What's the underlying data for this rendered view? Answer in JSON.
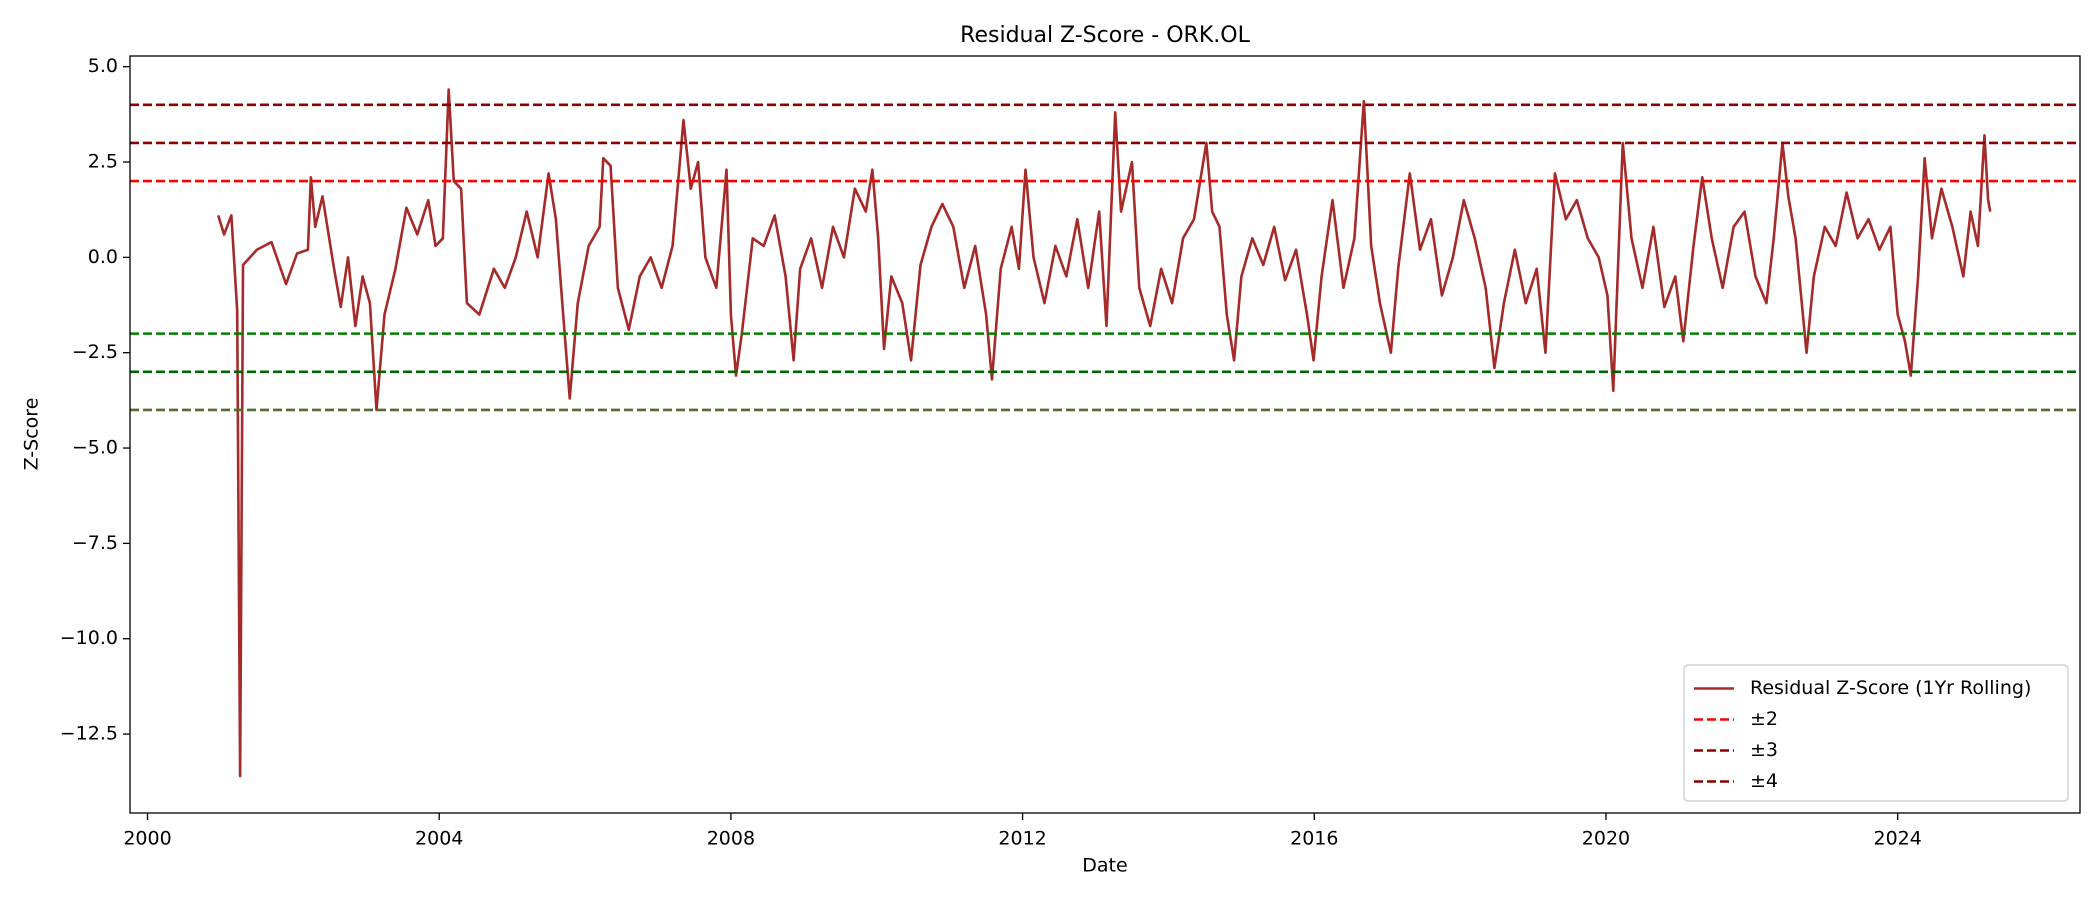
{
  "chart_data": {
    "type": "line",
    "title": "Residual Z-Score - ORK.OL",
    "x_label": "Date",
    "y_label": "Z-Score",
    "xlim": [
      1999.76,
      2026.5
    ],
    "xticks": [
      2000,
      2004,
      2008,
      2012,
      2016,
      2020,
      2024
    ],
    "ylim": [
      -14.57,
      5.28
    ],
    "yticks": [
      {
        "value": 5,
        "label": "5.0"
      },
      {
        "value": 2.5,
        "label": "2.5"
      },
      {
        "value": 0,
        "label": "0.0"
      },
      {
        "value": -2.5,
        "label": "−2.5"
      },
      {
        "value": -5,
        "label": "−5.0"
      },
      {
        "value": -7.5,
        "label": "−7.5"
      },
      {
        "value": -10,
        "label": "−10.0"
      },
      {
        "value": -12.5,
        "label": "−12.5"
      }
    ],
    "legend_position": "lower right",
    "x": [
      2000.97,
      2001.05,
      2001.15,
      2001.23,
      2001.27,
      2001.31,
      2001.5,
      2001.7,
      2001.9,
      2002.05,
      2002.2,
      2002.24,
      2002.3,
      2002.4,
      2002.55,
      2002.65,
      2002.75,
      2002.85,
      2002.95,
      2003.05,
      2003.14,
      2003.25,
      2003.4,
      2003.55,
      2003.7,
      2003.85,
      2003.95,
      2004.05,
      2004.13,
      2004.2,
      2004.3,
      2004.38,
      2004.55,
      2004.75,
      2004.9,
      2005.05,
      2005.2,
      2005.35,
      2005.5,
      2005.6,
      2005.7,
      2005.79,
      2005.9,
      2006.05,
      2006.2,
      2006.25,
      2006.35,
      2006.45,
      2006.6,
      2006.75,
      2006.9,
      2007.05,
      2007.2,
      2007.35,
      2007.45,
      2007.55,
      2007.65,
      2007.8,
      2007.94,
      2008.0,
      2008.07,
      2008.15,
      2008.3,
      2008.45,
      2008.6,
      2008.75,
      2008.86,
      2008.95,
      2009.1,
      2009.25,
      2009.4,
      2009.55,
      2009.7,
      2009.85,
      2009.94,
      2010.02,
      2010.1,
      2010.2,
      2010.35,
      2010.47,
      2010.6,
      2010.75,
      2010.9,
      2011.05,
      2011.2,
      2011.35,
      2011.5,
      2011.58,
      2011.7,
      2011.85,
      2011.95,
      2012.04,
      2012.15,
      2012.3,
      2012.45,
      2012.6,
      2012.75,
      2012.9,
      2013.05,
      2013.15,
      2013.27,
      2013.35,
      2013.5,
      2013.6,
      2013.75,
      2013.9,
      2014.05,
      2014.2,
      2014.35,
      2014.52,
      2014.6,
      2014.7,
      2014.8,
      2014.9,
      2015.0,
      2015.15,
      2015.3,
      2015.45,
      2015.6,
      2015.75,
      2015.9,
      2015.99,
      2016.1,
      2016.25,
      2016.4,
      2016.55,
      2016.68,
      2016.78,
      2016.9,
      2017.05,
      2017.15,
      2017.31,
      2017.45,
      2017.6,
      2017.75,
      2017.9,
      2018.05,
      2018.2,
      2018.35,
      2018.47,
      2018.6,
      2018.75,
      2018.9,
      2019.05,
      2019.17,
      2019.3,
      2019.45,
      2019.6,
      2019.75,
      2019.9,
      2020.02,
      2020.1,
      2020.23,
      2020.35,
      2020.5,
      2020.65,
      2020.8,
      2020.95,
      2021.06,
      2021.2,
      2021.32,
      2021.45,
      2021.6,
      2021.75,
      2021.9,
      2022.05,
      2022.2,
      2022.3,
      2022.42,
      2022.5,
      2022.6,
      2022.75,
      2022.85,
      2023.0,
      2023.15,
      2023.3,
      2023.45,
      2023.6,
      2023.75,
      2023.9,
      2024.0,
      2024.1,
      2024.18,
      2024.28,
      2024.37,
      2024.47,
      2024.6,
      2024.75,
      2024.9,
      2025.0,
      2025.1,
      2025.19,
      2025.24,
      2025.27
    ],
    "series": [
      {
        "name": "Residual Z-Score (1Yr Rolling)",
        "color": "#a52a2a",
        "values": [
          1.1,
          0.6,
          1.1,
          -1.4,
          -13.6,
          -0.2,
          0.2,
          0.4,
          -0.7,
          0.1,
          0.2,
          2.1,
          0.8,
          1.6,
          -0.2,
          -1.3,
          0.0,
          -1.8,
          -0.5,
          -1.2,
          -4.0,
          -1.5,
          -0.3,
          1.3,
          0.6,
          1.5,
          0.3,
          0.5,
          4.4,
          2.0,
          1.8,
          -1.2,
          -1.5,
          -0.3,
          -0.8,
          0.0,
          1.2,
          0.0,
          2.2,
          1.0,
          -1.5,
          -3.7,
          -1.2,
          0.3,
          0.8,
          2.6,
          2.4,
          -0.8,
          -1.9,
          -0.5,
          0.0,
          -0.8,
          0.3,
          3.6,
          1.8,
          2.5,
          0.0,
          -0.8,
          2.3,
          -1.5,
          -3.1,
          -2.0,
          0.5,
          0.3,
          1.1,
          -0.5,
          -2.7,
          -0.3,
          0.5,
          -0.8,
          0.8,
          0.0,
          1.8,
          1.2,
          2.3,
          0.5,
          -2.4,
          -0.5,
          -1.2,
          -2.7,
          -0.2,
          0.8,
          1.4,
          0.8,
          -0.8,
          0.3,
          -1.5,
          -3.2,
          -0.3,
          0.8,
          -0.3,
          2.3,
          0.0,
          -1.2,
          0.3,
          -0.5,
          1.0,
          -0.8,
          1.2,
          -1.8,
          3.8,
          1.2,
          2.5,
          -0.8,
          -1.8,
          -0.3,
          -1.2,
          0.5,
          1.0,
          3.0,
          1.2,
          0.8,
          -1.5,
          -2.7,
          -0.5,
          0.5,
          -0.2,
          0.8,
          -0.6,
          0.2,
          -1.5,
          -2.7,
          -0.5,
          1.5,
          -0.8,
          0.5,
          4.1,
          0.3,
          -1.2,
          -2.5,
          -0.3,
          2.2,
          0.2,
          1.0,
          -1.0,
          0.0,
          1.5,
          0.5,
          -0.8,
          -2.9,
          -1.2,
          0.2,
          -1.2,
          -0.3,
          -2.5,
          2.2,
          1.0,
          1.5,
          0.5,
          0.0,
          -1.0,
          -3.5,
          3.0,
          0.5,
          -0.8,
          0.8,
          -1.3,
          -0.5,
          -2.2,
          0.3,
          2.1,
          0.5,
          -0.8,
          0.8,
          1.2,
          -0.5,
          -1.2,
          0.5,
          3.0,
          1.6,
          0.5,
          -2.5,
          -0.5,
          0.8,
          0.3,
          1.7,
          0.5,
          1.0,
          0.2,
          0.8,
          -1.5,
          -2.2,
          -3.1,
          -0.5,
          2.6,
          0.5,
          1.8,
          0.8,
          -0.5,
          1.2,
          0.3,
          3.2,
          1.5,
          1.2
        ]
      }
    ],
    "hlines": [
      {
        "name": "±2",
        "values": [
          2,
          -2
        ],
        "colors": [
          "#ff0000",
          "#008000"
        ]
      },
      {
        "name": "±3",
        "values": [
          3,
          -3
        ],
        "colors": [
          "#8b0000",
          "#006400"
        ]
      },
      {
        "name": "±4",
        "values": [
          4,
          -4
        ],
        "colors": [
          "#8b0000",
          "#556b2f"
        ]
      }
    ]
  }
}
